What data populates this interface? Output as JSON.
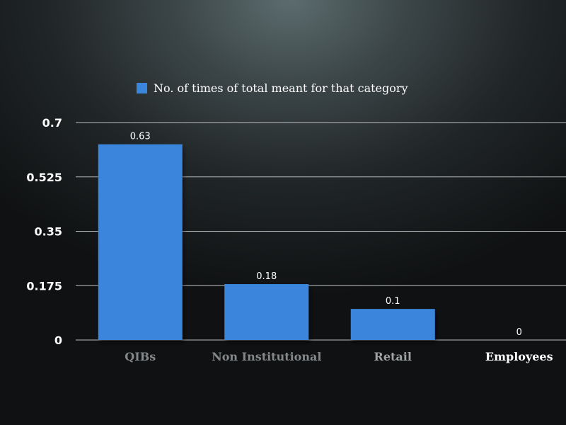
{
  "chart_data": {
    "type": "bar",
    "categories": [
      "QIBs",
      "Non Institutional",
      "Retail",
      "Employees"
    ],
    "series": [
      {
        "name": "No. of times of total meant for that category",
        "values": [
          0.63,
          0.18,
          0.1,
          0
        ],
        "color": "#3a86dc"
      }
    ],
    "data_labels": [
      "0.63",
      "0.18",
      "0.1",
      "0"
    ],
    "yticks": [
      0,
      0.175,
      0.35,
      0.525,
      0.7
    ],
    "ytick_labels": [
      "0",
      "0.175",
      "0.35",
      "0.525",
      "0.7"
    ],
    "ylim": [
      0,
      0.7
    ],
    "grid": true,
    "legend_position": "top",
    "title": "",
    "xlabel": "",
    "ylabel": ""
  }
}
